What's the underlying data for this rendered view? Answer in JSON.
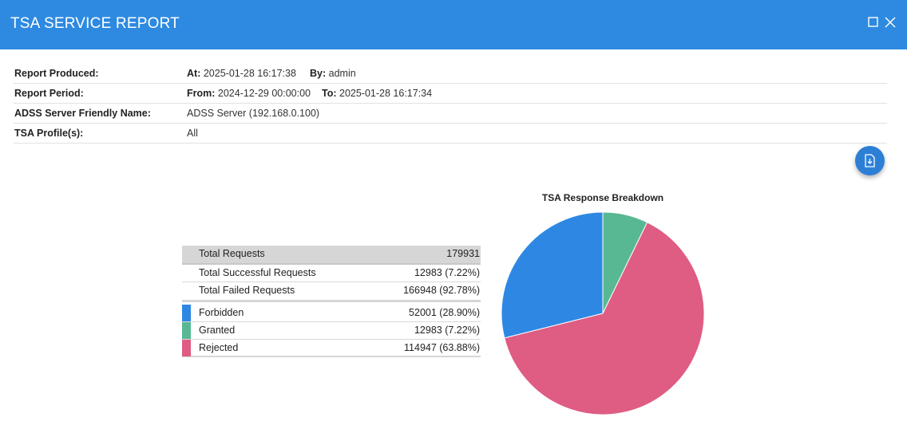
{
  "window": {
    "title": "TSA SERVICE REPORT",
    "maximize_icon": "maximize-icon",
    "close_icon": "close-icon"
  },
  "info": {
    "produced_label": "Report Produced:",
    "at_label": "At:",
    "at_value": "2025-01-28 16:17:38",
    "by_label": "By:",
    "by_value": "admin",
    "period_label": "Report Period:",
    "from_label": "From:",
    "from_value": "2024-12-29 00:00:00",
    "to_label": "To:",
    "to_value": "2025-01-28 16:17:34",
    "server_label": "ADSS Server Friendly Name:",
    "server_value": "ADSS Server (192.168.0.100)",
    "profile_label": "TSA Profile(s):",
    "profile_value": "All"
  },
  "download_icon": "file-download-icon",
  "summary": {
    "total_label": "Total Requests",
    "total_value": "179931",
    "success_label": "Total Successful Requests",
    "success_value": "12983 (7.22%)",
    "failed_label": "Total Failed Requests",
    "failed_value": "166948 (92.78%)",
    "items": [
      {
        "label": "Forbidden",
        "value": "52001 (28.90%)",
        "color": "#2e88e3"
      },
      {
        "label": "Granted",
        "value": "12983 (7.22%)",
        "color": "#58b894"
      },
      {
        "label": "Rejected",
        "value": "114947 (63.88%)",
        "color": "#df5c83"
      }
    ]
  },
  "chart_data": {
    "type": "pie",
    "title": "TSA Response Breakdown",
    "categories": [
      "Granted",
      "Rejected",
      "Forbidden"
    ],
    "values": [
      12983,
      114947,
      52001
    ],
    "colors": [
      "#58b894",
      "#df5c83",
      "#2e88e3"
    ],
    "legend": "none"
  }
}
